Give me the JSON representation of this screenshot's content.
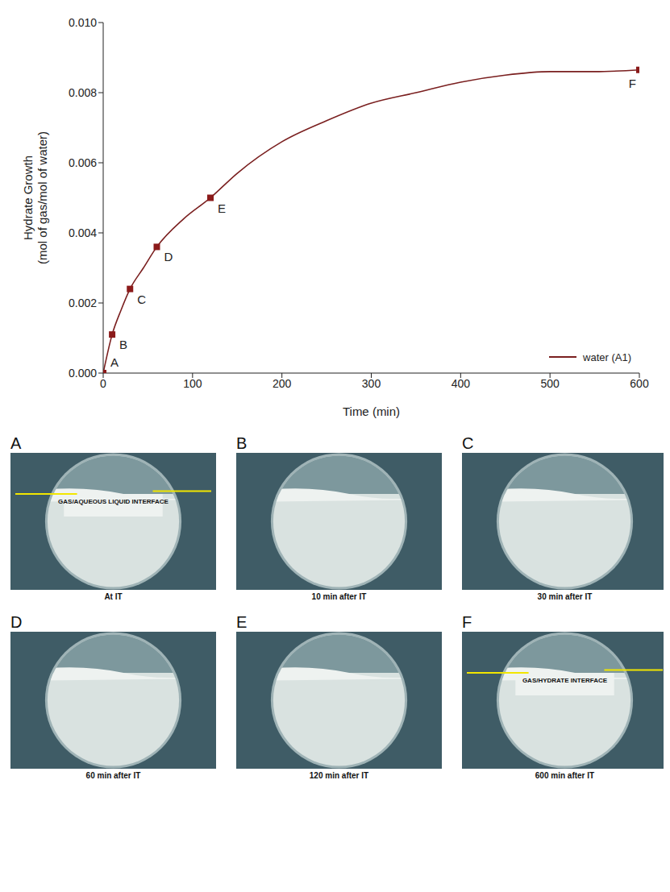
{
  "chart_data": {
    "type": "line",
    "x_label": "Time (min)",
    "y_label": [
      "Hydrate Growth",
      "(mol of gas/mol of water)"
    ],
    "xlim": [
      0,
      600
    ],
    "xticks": [
      0,
      100,
      200,
      300,
      400,
      500,
      600
    ],
    "ylim": [
      0,
      0.01
    ],
    "yticks": [
      {
        "value": 0,
        "label": "0.000"
      },
      {
        "value": 0.002,
        "label": "0.002"
      },
      {
        "value": 0.004,
        "label": "0.004"
      },
      {
        "value": 0.006,
        "label": "0.006"
      },
      {
        "value": 0.008,
        "label": "0.008"
      },
      {
        "value": 0.01,
        "label": "0.010"
      }
    ],
    "legend": "lower right",
    "series": [
      {
        "name": "water (A1)",
        "color": "#7a1f1f",
        "x": [
          0,
          10,
          20,
          30,
          45,
          60,
          90,
          120,
          150,
          200,
          250,
          300,
          350,
          400,
          450,
          500,
          550,
          600
        ],
        "values": [
          0,
          0.0011,
          0.0018,
          0.0024,
          0.003,
          0.0036,
          0.0044,
          0.005,
          0.0057,
          0.0066,
          0.0072,
          0.0077,
          0.008,
          0.0083,
          0.0085,
          0.0086,
          0.0086,
          0.00865
        ]
      }
    ],
    "markers": {
      "x": [
        0,
        10,
        30,
        60,
        120,
        600
      ],
      "values": [
        0,
        0.0011,
        0.0024,
        0.0036,
        0.005,
        0.00865
      ],
      "labels": [
        "A",
        "B",
        "C",
        "D",
        "E",
        "F"
      ],
      "color": "#8b1a1a",
      "marker": "square"
    }
  },
  "panels": [
    {
      "letter": "A",
      "caption": "At IT",
      "annotation": "GAS/AQUEOUS LIQUID INTERFACE"
    },
    {
      "letter": "B",
      "caption": "10 min after IT"
    },
    {
      "letter": "C",
      "caption": "30 min after IT"
    },
    {
      "letter": "D",
      "caption": "60 min after IT"
    },
    {
      "letter": "E",
      "caption": "120 min after IT"
    },
    {
      "letter": "F",
      "caption": "600 min after IT",
      "annotation": "GAS/HYDRATE INTERFACE"
    }
  ]
}
